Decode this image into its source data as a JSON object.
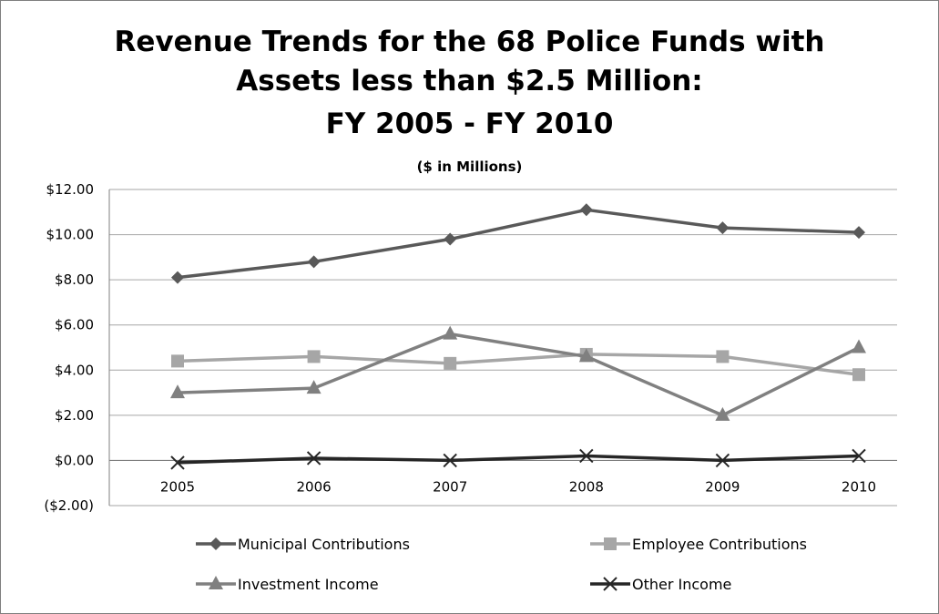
{
  "chart_data": {
    "type": "line",
    "title_lines": [
      "Revenue Trends for the 68 Police Funds with",
      "Assets less than $2.5 Million:",
      "FY 2005 - FY 2010"
    ],
    "subtitle": "($ in Millions)",
    "x": [
      "2005",
      "2006",
      "2007",
      "2008",
      "2009",
      "2010"
    ],
    "y_ticks": [
      "($2.00)",
      "$0.00",
      "$2.00",
      "$4.00",
      "$6.00",
      "$8.00",
      "$10.00",
      "$12.00"
    ],
    "ylim": [
      -2,
      12
    ],
    "grid": true,
    "legend_position": "bottom",
    "series": [
      {
        "name": "Municipal Contributions",
        "marker": "diamond",
        "color": "#595959",
        "values": [
          8.1,
          8.8,
          9.8,
          11.1,
          10.3,
          10.1
        ]
      },
      {
        "name": "Employee Contributions",
        "marker": "square",
        "color": "#a6a6a6",
        "values": [
          4.4,
          4.6,
          4.3,
          4.7,
          4.6,
          3.8
        ]
      },
      {
        "name": "Investment Income",
        "marker": "triangle",
        "color": "#808080",
        "values": [
          3.0,
          3.2,
          5.6,
          4.6,
          2.0,
          5.0
        ]
      },
      {
        "name": "Other Income",
        "marker": "x",
        "color": "#262626",
        "values": [
          -0.1,
          0.1,
          0.0,
          0.2,
          0.0,
          0.2
        ]
      }
    ]
  }
}
